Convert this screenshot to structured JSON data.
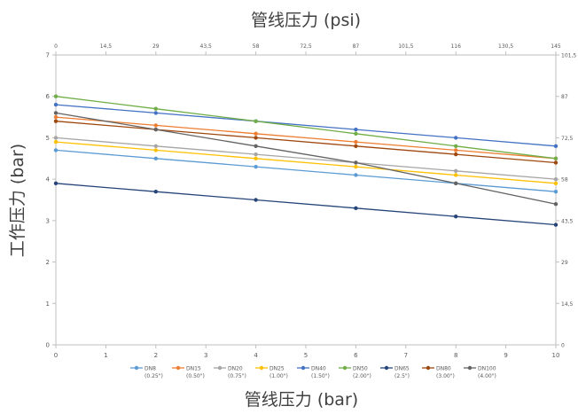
{
  "chart_data": {
    "type": "line",
    "title": "管线压力 (psi)",
    "xlabel": "管线压力 (bar)",
    "ylabel": "工作压力 (bar)",
    "xlim": [
      0,
      10
    ],
    "ylim": [
      0,
      7
    ],
    "x_ticks": [
      "0",
      "1",
      "2",
      "3",
      "4",
      "5",
      "6",
      "7",
      "8",
      "9",
      "10"
    ],
    "y_ticks": [
      "0",
      "1",
      "2",
      "3",
      "4",
      "5",
      "6",
      "7"
    ],
    "x2_ticks": [
      "0",
      "14,5",
      "29",
      "43,5",
      "58",
      "72,5",
      "87",
      "101,5",
      "116",
      "130,5",
      "145"
    ],
    "y2_ticks": [
      "0",
      "14,5",
      "29",
      "43,5",
      "58",
      "72,5",
      "87",
      "101,5"
    ],
    "grid": false,
    "legend_position": "bottom",
    "x": [
      0,
      2,
      4,
      6,
      8,
      10
    ],
    "series": [
      {
        "name": "DN8",
        "sub": "(0.25\")",
        "color": "#5b9bd5",
        "values": [
          4.7,
          4.5,
          4.3,
          4.1,
          3.9,
          3.7
        ]
      },
      {
        "name": "DN15",
        "sub": "(0.50\")",
        "color": "#ed7d31",
        "values": [
          5.5,
          5.3,
          5.1,
          4.9,
          4.7,
          4.5
        ]
      },
      {
        "name": "DN20",
        "sub": "(0.75\")",
        "color": "#a5a5a5",
        "values": [
          5.0,
          4.8,
          4.6,
          4.4,
          4.2,
          4.0
        ]
      },
      {
        "name": "DN25",
        "sub": "(1.00\")",
        "color": "#ffc000",
        "values": [
          4.9,
          4.7,
          4.5,
          4.3,
          4.1,
          3.9
        ]
      },
      {
        "name": "DN40",
        "sub": "(1.50\")",
        "color": "#4472c4",
        "values": [
          5.8,
          5.6,
          5.4,
          5.2,
          5.0,
          4.8
        ]
      },
      {
        "name": "DN50",
        "sub": "(2.00\")",
        "color": "#70ad47",
        "values": [
          6.0,
          5.7,
          5.4,
          5.1,
          4.8,
          4.5
        ]
      },
      {
        "name": "DN65",
        "sub": "(2.5\")",
        "color": "#264478",
        "values": [
          3.9,
          3.7,
          3.5,
          3.3,
          3.1,
          2.9
        ]
      },
      {
        "name": "DN80",
        "sub": "(3.00\")",
        "color": "#9e480e",
        "values": [
          5.4,
          5.2,
          5.0,
          4.8,
          4.6,
          4.4
        ]
      },
      {
        "name": "DN100",
        "sub": "(4.00\")",
        "color": "#636363",
        "values": [
          5.6,
          5.2,
          4.8,
          4.4,
          3.9,
          3.4
        ]
      }
    ]
  }
}
